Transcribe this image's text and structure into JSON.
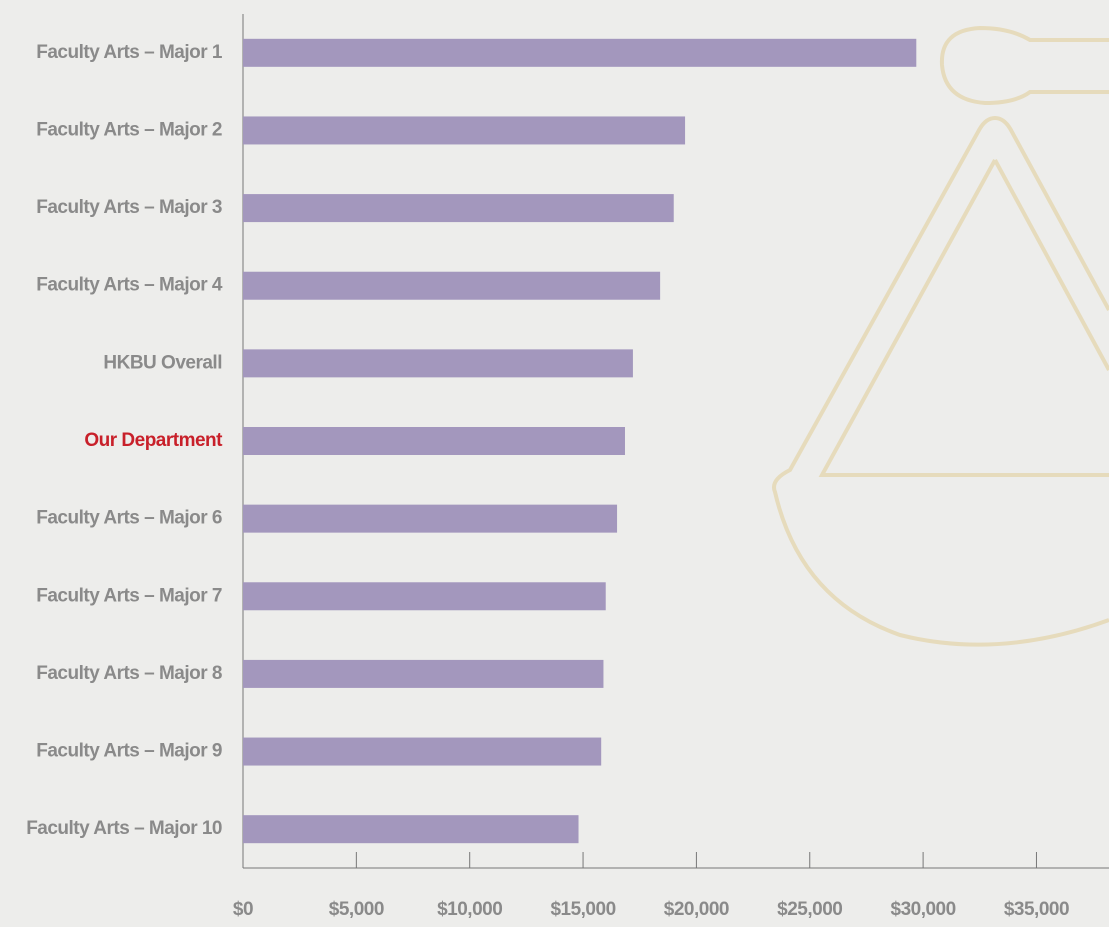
{
  "chart_data": {
    "type": "bar",
    "categories": [
      "Faculty Arts – Major 1",
      "Faculty Arts – Major 2",
      "Faculty Arts – Major 3",
      "Faculty Arts – Major 4",
      "HKBU Overall",
      "Our Department",
      "Faculty Arts – Major 6",
      "Faculty Arts – Major 7",
      "Faculty Arts – Major 8",
      "Faculty Arts – Major 9",
      "Faculty Arts – Major 10"
    ],
    "values": [
      29700,
      19500,
      19000,
      18400,
      17200,
      16850,
      16500,
      16000,
      15900,
      15800,
      14800
    ],
    "color": "#a397bd",
    "highlight": {
      "index": 5,
      "color": "#c8202a"
    },
    "xlim": [
      0,
      38200
    ],
    "xticks": [
      {
        "value": 0,
        "label": "$0"
      },
      {
        "value": 5000,
        "label": "$5,000"
      },
      {
        "value": 10000,
        "label": "$10,000"
      },
      {
        "value": 15000,
        "label": "$15,000"
      },
      {
        "value": 20000,
        "label": "$20,000"
      },
      {
        "value": 25000,
        "label": "$25,000"
      },
      {
        "value": 30000,
        "label": "$30,000"
      },
      {
        "value": 35000,
        "label": "$35,000"
      }
    ]
  }
}
